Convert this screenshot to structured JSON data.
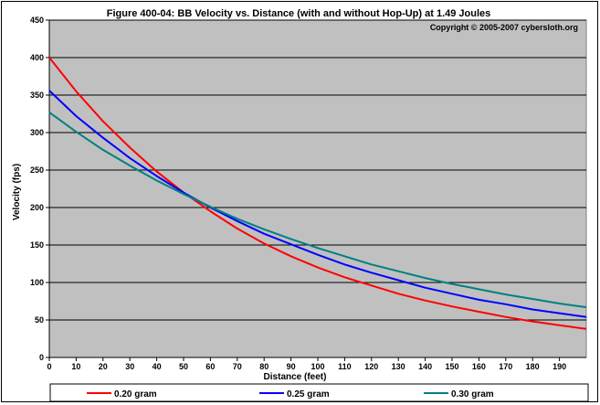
{
  "chart_data": {
    "type": "line",
    "title": "Figure 400-04:  BB Velocity vs. Distance (with and without Hop-Up) at 1.49 Joules",
    "copyright": "Copyright © 2005-2007 cybersloth.org",
    "xlabel": "Distance (feet)",
    "ylabel": "Velocity (fps)",
    "xlim": [
      0,
      200
    ],
    "ylim": [
      0,
      450
    ],
    "x_ticks": [
      0,
      10,
      20,
      30,
      40,
      50,
      60,
      70,
      80,
      90,
      100,
      110,
      120,
      130,
      140,
      150,
      160,
      170,
      180,
      190
    ],
    "y_ticks": [
      0,
      50,
      100,
      150,
      200,
      250,
      300,
      350,
      400,
      450
    ],
    "grid": "horizontal",
    "legend_position": "bottom",
    "plot_background": "#c0c0c0",
    "x": [
      0,
      10,
      20,
      30,
      40,
      50,
      60,
      70,
      80,
      90,
      100,
      110,
      120,
      130,
      140,
      150,
      160,
      170,
      180,
      190,
      200
    ],
    "series": [
      {
        "name": "0.20 gram",
        "color": "#ff0000",
        "values": [
          400,
          355,
          315,
          280,
          248,
          220,
          195,
          172,
          152,
          135,
          120,
          107,
          96,
          85,
          76,
          68,
          61,
          54,
          48,
          43,
          38
        ]
      },
      {
        "name": "0.25 gram",
        "color": "#0000ff",
        "values": [
          356,
          322,
          293,
          266,
          242,
          220,
          200,
          182,
          165,
          151,
          137,
          124,
          113,
          103,
          93,
          85,
          77,
          71,
          64,
          59,
          54
        ]
      },
      {
        "name": "0.30 gram",
        "color": "#008080",
        "values": [
          327,
          301,
          277,
          256,
          236,
          218,
          201,
          185,
          171,
          158,
          146,
          135,
          124,
          115,
          106,
          98,
          91,
          84,
          78,
          72,
          67
        ]
      }
    ]
  }
}
